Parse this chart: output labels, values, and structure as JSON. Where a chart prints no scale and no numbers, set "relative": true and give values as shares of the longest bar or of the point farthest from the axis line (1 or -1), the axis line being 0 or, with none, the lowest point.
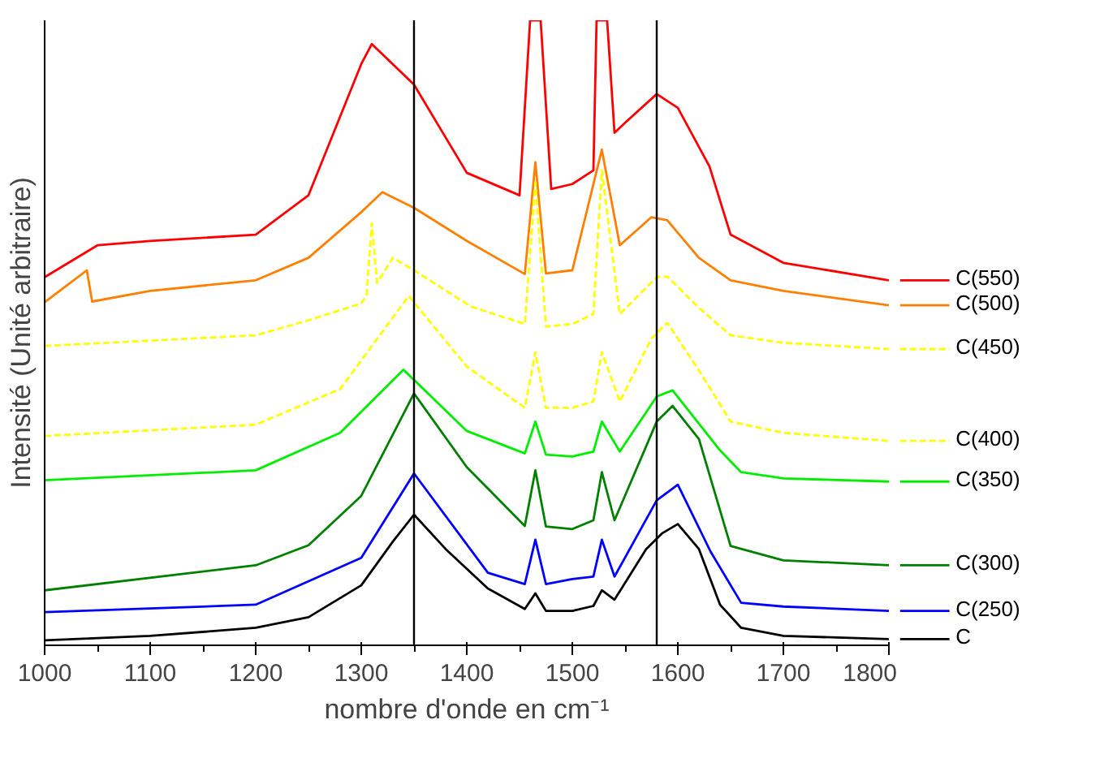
{
  "chart_data": {
    "type": "line",
    "relative": true,
    "xlabel": "nombre d'onde en cm⁻¹",
    "ylabel": "Intensité (Unité arbitraire)",
    "xlim": [
      1000,
      1800
    ],
    "xticks": [
      1000,
      1100,
      1200,
      1300,
      1400,
      1500,
      1600,
      1700,
      1800
    ],
    "grid": false,
    "legend": "right",
    "marker": "none",
    "x": [
      1000,
      1100,
      1200,
      1250,
      1300,
      1330,
      1350,
      1380,
      1420,
      1455,
      1465,
      1475,
      1500,
      1520,
      1528,
      1540,
      1570,
      1585,
      1600,
      1620,
      1640,
      1660,
      1700,
      1800
    ],
    "ref_lines": [
      {
        "axis": "x",
        "value": 1350,
        "color": "#000000"
      },
      {
        "axis": "x",
        "value": 1580,
        "color": "#000000"
      }
    ],
    "series": [
      {
        "name": "C(550)",
        "color": "#ff0000",
        "x": [
          1000,
          1050,
          1100,
          1200,
          1250,
          1300,
          1310,
          1350,
          1400,
          1450,
          1460,
          1470,
          1480,
          1500,
          1520,
          1523,
          1533,
          1540,
          1550,
          1580,
          1600,
          1630,
          1650,
          1700,
          1800
        ],
        "values": [
          0.589,
          0.64,
          0.647,
          0.657,
          0.72,
          0.93,
          0.962,
          0.897,
          0.756,
          0.72,
          1,
          1,
          0.73,
          0.738,
          0.76,
          1,
          1,
          0.82,
          0.836,
          0.882,
          0.86,
          0.766,
          0.657,
          0.612,
          0.584
        ]
      },
      {
        "name": "C(500)",
        "color": "#ff8000",
        "x": [
          1000,
          1040,
          1045,
          1100,
          1200,
          1250,
          1300,
          1320,
          1350,
          1400,
          1455,
          1465,
          1475,
          1500,
          1528,
          1545,
          1575,
          1590,
          1620,
          1650,
          1700,
          1800
        ],
        "values": [
          0.549,
          0.6,
          0.55,
          0.567,
          0.584,
          0.62,
          0.693,
          0.725,
          0.7,
          0.647,
          0.594,
          0.773,
          0.595,
          0.6,
          0.793,
          0.64,
          0.685,
          0.68,
          0.62,
          0.584,
          0.567,
          0.544
        ]
      },
      {
        "name": "C(450)",
        "color": "#ffff00",
        "line_style": "dashed",
        "x": [
          1000,
          1200,
          1250,
          1300,
          1305,
          1310,
          1315,
          1330,
          1350,
          1404,
          1455,
          1465,
          1475,
          1500,
          1520,
          1528,
          1545,
          1580,
          1590,
          1620,
          1650,
          1700,
          1800
        ],
        "values": [
          0.479,
          0.496,
          0.52,
          0.547,
          0.56,
          0.675,
          0.58,
          0.62,
          0.6,
          0.542,
          0.514,
          0.74,
          0.51,
          0.514,
          0.53,
          0.76,
          0.53,
          0.589,
          0.59,
          0.54,
          0.496,
          0.484,
          0.474
        ]
      },
      {
        "name": "C(400)",
        "color": "#ffff00",
        "line_style": "dashed",
        "x": [
          1000,
          1200,
          1280,
          1345,
          1400,
          1455,
          1465,
          1475,
          1500,
          1520,
          1528,
          1545,
          1575,
          1590,
          1620,
          1650,
          1700,
          1800
        ],
        "values": [
          0.335,
          0.353,
          0.41,
          0.559,
          0.446,
          0.38,
          0.469,
          0.38,
          0.38,
          0.39,
          0.469,
          0.39,
          0.491,
          0.516,
          0.44,
          0.358,
          0.34,
          0.327
        ]
      },
      {
        "name": "C(350)",
        "color": "#00ee00",
        "x": [
          1000,
          1200,
          1280,
          1340,
          1400,
          1455,
          1465,
          1475,
          1500,
          1520,
          1528,
          1545,
          1580,
          1595,
          1640,
          1660,
          1700,
          1800
        ],
        "values": [
          0.264,
          0.28,
          0.34,
          0.441,
          0.343,
          0.307,
          0.358,
          0.305,
          0.302,
          0.31,
          0.358,
          0.31,
          0.398,
          0.408,
          0.312,
          0.277,
          0.267,
          0.262
        ]
      },
      {
        "name": "C(300)",
        "color": "#008000",
        "x": [
          1000,
          1200,
          1250,
          1300,
          1350,
          1400,
          1455,
          1465,
          1475,
          1500,
          1520,
          1528,
          1540,
          1580,
          1595,
          1620,
          1650,
          1700,
          1800
        ],
        "values": [
          0.088,
          0.128,
          0.16,
          0.239,
          0.403,
          0.285,
          0.191,
          0.28,
          0.19,
          0.186,
          0.2,
          0.277,
          0.2,
          0.358,
          0.383,
          0.33,
          0.159,
          0.136,
          0.128
        ]
      },
      {
        "name": "C(250)",
        "color": "#0000ff",
        "x": [
          1000,
          1200,
          1300,
          1350,
          1420,
          1455,
          1465,
          1475,
          1500,
          1520,
          1528,
          1540,
          1580,
          1600,
          1631,
          1660,
          1700,
          1800
        ],
        "values": [
          0.053,
          0.065,
          0.14,
          0.275,
          0.116,
          0.098,
          0.169,
          0.098,
          0.106,
          0.11,
          0.169,
          0.11,
          0.232,
          0.257,
          0.15,
          0.068,
          0.062,
          0.055
        ]
      },
      {
        "name": "C",
        "color": "#000000",
        "values": [
          0.008,
          0.015,
          0.028,
          0.045,
          0.096,
          0.166,
          0.209,
          0.154,
          0.091,
          0.058,
          0.083,
          0.055,
          0.055,
          0.063,
          0.088,
          0.073,
          0.154,
          0.179,
          0.194,
          0.154,
          0.065,
          0.028,
          0.015,
          0.01
        ]
      }
    ]
  }
}
